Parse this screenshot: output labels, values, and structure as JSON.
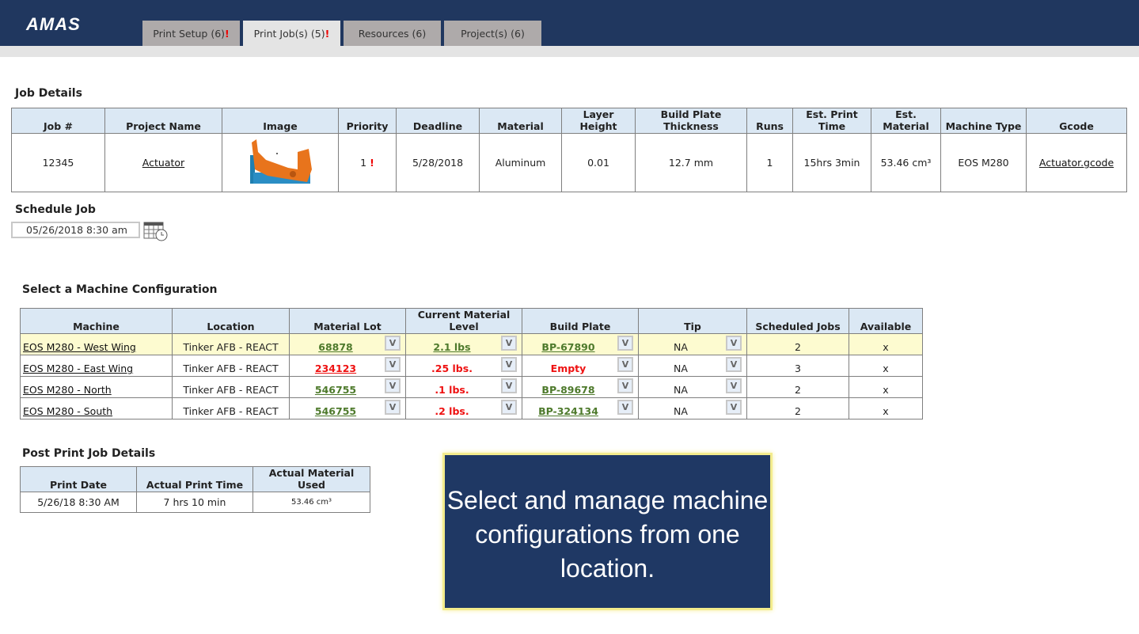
{
  "app": {
    "logo": "AMAS"
  },
  "tabs": [
    {
      "label": "Print Setup (6)",
      "alert": "!"
    },
    {
      "label": "Print Job(s) (5)",
      "alert": "!"
    },
    {
      "label": "Resources (6)"
    },
    {
      "label": "Project(s) (6)"
    }
  ],
  "job_details": {
    "title": "Job Details",
    "headers": [
      "Job #",
      "Project Name",
      "Image",
      "Priority",
      "Deadline",
      "Material",
      "Layer Height",
      "Build Plate Thickness",
      "Runs",
      "Est. Print Time",
      "Est. Material",
      "Machine Type",
      "Gcode"
    ],
    "row": {
      "job": "12345",
      "project": "Actuator",
      "priority": "1",
      "priority_alert": "!",
      "deadline": "5/28/2018",
      "material": "Aluminum",
      "layer_height": "0.01",
      "plate_thickness": "12.7 mm",
      "runs": "1",
      "print_time": "15hrs 3min",
      "est_material": "53.46 cm³",
      "machine_type": "EOS M280",
      "gcode": "Actuator.gcode"
    }
  },
  "schedule": {
    "title": "Schedule Job",
    "value": "05/26/2018 8:30 am"
  },
  "machines": {
    "title": "Select a Machine Configuration",
    "headers": [
      "Machine",
      "Location",
      "Material Lot",
      "Current Material Level",
      "Build Plate",
      "Tip",
      "Scheduled Jobs",
      "Available"
    ],
    "dropdown_label": "V",
    "rows": [
      {
        "machine": "EOS M280 - West Wing",
        "location": "Tinker AFB - REACT",
        "lot": "68878",
        "level": "2.1 lbs",
        "plate": "BP-67890",
        "tip": "NA",
        "jobs": "2",
        "available": "x"
      },
      {
        "machine": "EOS M280 - East Wing",
        "location": "Tinker AFB - REACT",
        "lot": "234123",
        "level": ".25 lbs.",
        "plate": "Empty",
        "tip": "NA",
        "jobs": "3",
        "available": "x"
      },
      {
        "machine": "EOS M280 - North",
        "location": "Tinker AFB - REACT",
        "lot": "546755",
        "level": ".1 lbs.",
        "plate": "BP-89678",
        "tip": "NA",
        "jobs": "2",
        "available": "x"
      },
      {
        "machine": "EOS M280 - South",
        "location": "Tinker AFB - REACT",
        "lot": "546755",
        "level": ".2 lbs.",
        "plate": "BP-324134",
        "tip": "NA",
        "jobs": "2",
        "available": "x"
      }
    ]
  },
  "post_print": {
    "title": "Post Print Job Details",
    "headers": [
      "Print Date",
      "Actual Print Time",
      "Actual Material Used"
    ],
    "row": [
      "5/26/18 8:30 AM",
      "7 hrs 10 min",
      "53.46 cm³"
    ]
  },
  "callout": {
    "text": "Select and manage machine configurations from one location."
  },
  "colors": {
    "header": "#20375f",
    "ok": "#4e7a2c",
    "alert": "#ee1111",
    "highlight": "#fdfbd0"
  }
}
